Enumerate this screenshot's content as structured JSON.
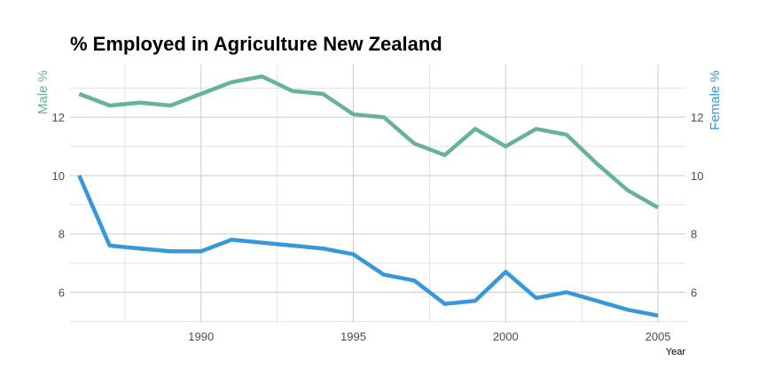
{
  "chart_data": {
    "type": "line",
    "title": "% Employed in Agriculture New Zealand",
    "xlabel": "Year",
    "ylabel_left": "Male %",
    "ylabel_right": "Female %",
    "x": [
      1986,
      1987,
      1988,
      1989,
      1990,
      1991,
      1992,
      1993,
      1994,
      1995,
      1996,
      1997,
      1998,
      1999,
      2000,
      2001,
      2002,
      2003,
      2004,
      2005
    ],
    "series": [
      {
        "name": "Male %",
        "color": "#66b39a",
        "axis": "left",
        "values": [
          12.8,
          12.4,
          12.5,
          12.4,
          12.8,
          13.2,
          13.4,
          12.9,
          12.8,
          12.1,
          12.0,
          11.1,
          10.7,
          11.6,
          11.0,
          11.6,
          11.4,
          10.4,
          9.5,
          8.9
        ]
      },
      {
        "name": "Female %",
        "color": "#3498db",
        "axis": "right",
        "values": [
          10.0,
          7.6,
          7.5,
          7.4,
          7.4,
          7.8,
          7.7,
          7.6,
          7.5,
          7.3,
          6.6,
          6.4,
          5.6,
          5.7,
          6.7,
          5.8,
          6.0,
          5.7,
          5.4,
          5.2
        ]
      }
    ],
    "xlim": [
      1985.7,
      2005.9
    ],
    "ylim": [
      4.95,
      13.8
    ],
    "x_ticks": [
      "1990",
      "1995",
      "2000",
      "2005"
    ],
    "y_ticks_left": [
      "6",
      "8",
      "10",
      "12"
    ],
    "y_ticks_right": [
      "6",
      "8",
      "10",
      "12"
    ],
    "grid": true
  }
}
